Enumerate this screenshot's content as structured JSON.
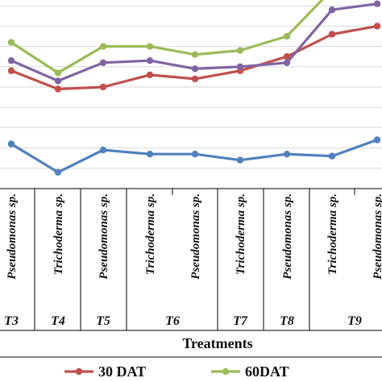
{
  "chart_data": {
    "type": "line",
    "xlabel": "Treatments",
    "ylabel": "",
    "ylim": [
      0,
      10
    ],
    "grid": "horizontal",
    "legend_position": "bottom",
    "categories": [
      "Pseudomonas sp.",
      "Trichoderma sp.",
      "Pseudomonas sp.",
      "Trichoderma sp.",
      "Pseudomonas sp.",
      "Trichoderma sp.",
      "Pseudomonas sp.",
      "Trichoderma sp.",
      "Pseudomonas sp."
    ],
    "groups": [
      {
        "label": "T3",
        "columns": [
          0
        ]
      },
      {
        "label": "T4",
        "columns": [
          1
        ]
      },
      {
        "label": "T5",
        "columns": [
          2
        ]
      },
      {
        "label": "T6",
        "columns": [
          3,
          4
        ]
      },
      {
        "label": "T7",
        "columns": [
          5
        ]
      },
      {
        "label": "T8",
        "columns": [
          6
        ]
      },
      {
        "label": "T9",
        "columns": [
          7,
          8
        ]
      }
    ],
    "series": [
      {
        "values": [
          2.2,
          0.8,
          1.9,
          1.7,
          1.7,
          1.4,
          1.7,
          1.6,
          2.4
        ],
        "color": "#4f81bd"
      },
      {
        "name": "30 DAT",
        "values": [
          5.8,
          4.9,
          5.0,
          5.6,
          5.4,
          5.8,
          6.5,
          7.6,
          8.0
        ],
        "color": "#c0504d"
      },
      {
        "values": [
          6.3,
          5.3,
          6.2,
          6.3,
          5.9,
          6.0,
          6.2,
          8.8,
          9.1
        ],
        "color": "#8064a2"
      },
      {
        "name": "60DAT",
        "values": [
          7.2,
          5.7,
          7.0,
          7.0,
          6.6,
          6.8,
          7.5,
          9.8,
          9.6
        ],
        "color": "#9bbb59"
      }
    ]
  }
}
